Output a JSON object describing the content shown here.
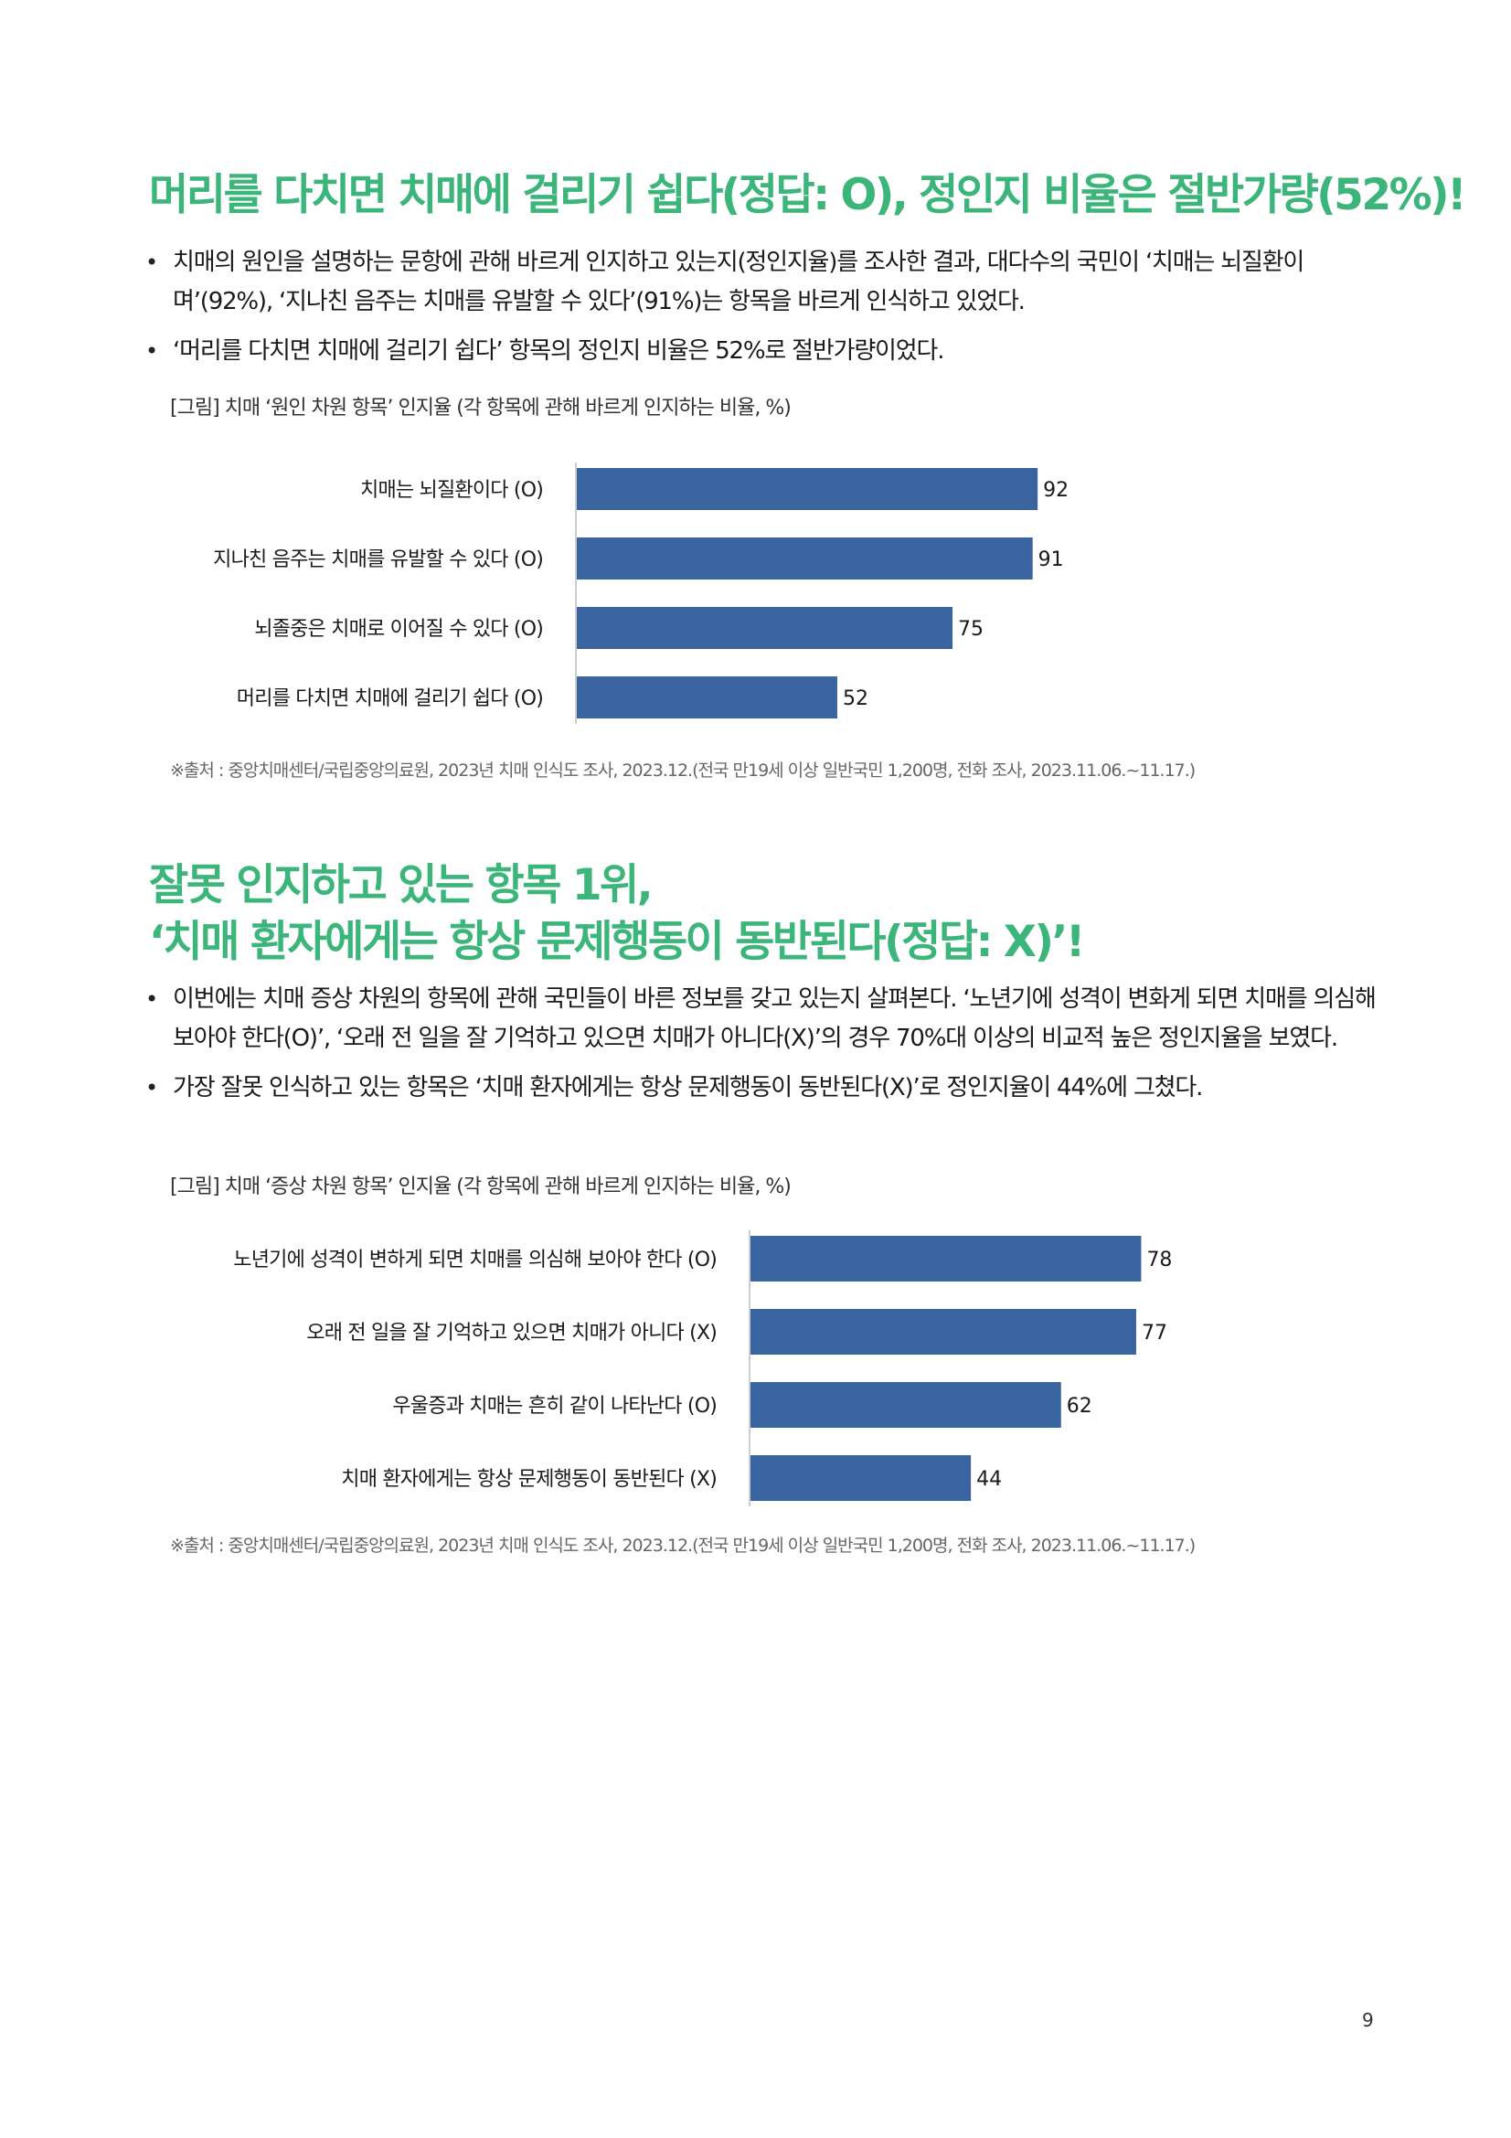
{
  "section1": {
    "title": "머리를 다치면 치매에 걸리기 쉽다(정답: O), 정인지 비율은 절반가량(52%)!",
    "bullets": [
      "치매의 원인을 설명하는 문항에 관해 바르게 인지하고 있는지(정인지율)를 조사한 결과, 대다수의 국민이 ‘치매는 뇌질환이며’(92%), ‘지나친 음주는 치매를 유발할 수 있다’(91%)는 항목을 바르게 인식하고 있었다.",
      "‘머리를 다치면 치매에 걸리기 쉽다’ 항목의 정인지 비율은 52%로 절반가량이었다."
    ],
    "figure_caption": "[그림] 치매 ‘원인 차원 항목’ 인지율 (각 항목에 관해 바르게 인지하는 비율, %)",
    "source": "※출처 : 중앙치매센터/국립중앙의료원, 2023년 치매 인식도 조사, 2023.12.(전국 만19세 이상 일반국민 1,200명, 전화 조사, 2023.11.06.~11.17.)"
  },
  "section2": {
    "title_line1": "잘못 인지하고 있는 항목 1위,",
    "title_line2": "‘치매 환자에게는 항상 문제행동이 동반된다(정답: X)’!",
    "bullets": [
      "이번에는 치매 증상 차원의 항목에 관해 국민들이 바른 정보를 갖고 있는지 살펴본다. ‘노년기에 성격이 변화게 되면 치매를 의심해 보아야 한다(O)’, ‘오래 전 일을 잘 기억하고 있으면 치매가 아니다(X)’의 경우 70%대 이상의 비교적 높은 정인지율을 보였다.",
      "가장 잘못 인식하고 있는 항목은 ‘치매 환자에게는 항상 문제행동이 동반된다(X)’로 정인지율이 44%에 그쳤다."
    ],
    "figure_caption": "[그림] 치매 ‘증상 차원 항목’ 인지율 (각 항목에 관해 바르게 인지하는 비율, %)",
    "source": "※출처 : 중앙치매센터/국립중앙의료원, 2023년 치매 인식도 조사, 2023.12.(전국 만19세 이상 일반국민 1,200명, 전화 조사, 2023.11.06.~11.17.)"
  },
  "colors": {
    "title_green": "#3bb57a",
    "bar_blue": "#3a64a0",
    "axis_gray": "#bdbdbd"
  },
  "chart_data": [
    {
      "type": "bar",
      "orientation": "horizontal",
      "categories": [
        "치매는 뇌질환이다 (O)",
        "지나친 음주는 치매를 유발할 수 있다 (O)",
        "뇌졸중은 치매로 이어질 수 있다 (O)",
        "머리를 다치면 치매에 걸리기 쉽다 (O)"
      ],
      "values": [
        92,
        91,
        75,
        52
      ],
      "xlim": [
        0,
        100
      ],
      "grid": false,
      "title": "",
      "xlabel": "",
      "ylabel": ""
    },
    {
      "type": "bar",
      "orientation": "horizontal",
      "categories": [
        "노년기에 성격이 변하게 되면 치매를 의심해 보아야 한다 (O)",
        "오래 전 일을 잘 기억하고 있으면 치매가 아니다 (X)",
        "우울증과 치매는 흔히 같이 나타난다 (O)",
        "치매 환자에게는 항상 문제행동이 동반된다 (X)"
      ],
      "values": [
        78,
        77,
        62,
        44
      ],
      "xlim": [
        0,
        100
      ],
      "grid": false,
      "title": "",
      "xlabel": "",
      "ylabel": ""
    }
  ],
  "page_number": "9"
}
